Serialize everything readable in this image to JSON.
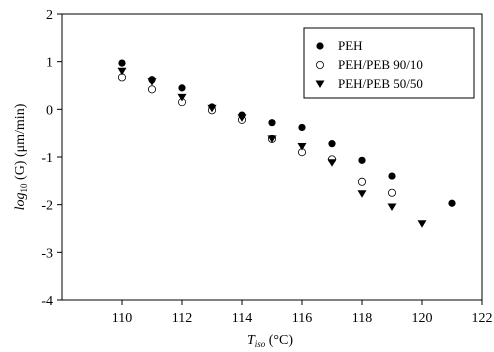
{
  "chart_data": {
    "type": "scatter",
    "title": "",
    "xlabel": {
      "main": "T",
      "sub": "iso",
      "rest": " (°C)"
    },
    "ylabel": {
      "pre": "log",
      "sub": "10",
      "rest": " (G) (μm/min)"
    },
    "xlim": [
      108,
      122
    ],
    "ylim": [
      -4,
      2
    ],
    "xticks": [
      110,
      112,
      114,
      116,
      118,
      120,
      122
    ],
    "yticks": [
      -4,
      -3,
      -2,
      -1,
      0,
      1,
      2
    ],
    "grid": false,
    "legend_position": "top-right",
    "series": [
      {
        "name": "PEH",
        "marker": "filled-circle",
        "points": [
          [
            110,
            0.97
          ],
          [
            111,
            0.62
          ],
          [
            112,
            0.45
          ],
          [
            113,
            0.05
          ],
          [
            114,
            -0.12
          ],
          [
            115,
            -0.28
          ],
          [
            116,
            -0.38
          ],
          [
            117,
            -0.72
          ],
          [
            118,
            -1.07
          ],
          [
            119,
            -1.4
          ],
          [
            121,
            -1.97
          ]
        ]
      },
      {
        "name": "PEH/PEB 90/10",
        "marker": "open-circle",
        "points": [
          [
            110,
            0.67
          ],
          [
            111,
            0.42
          ],
          [
            112,
            0.15
          ],
          [
            113,
            -0.02
          ],
          [
            114,
            -0.22
          ],
          [
            115,
            -0.62
          ],
          [
            116,
            -0.9
          ],
          [
            117,
            -1.05
          ],
          [
            118,
            -1.52
          ],
          [
            119,
            -1.75
          ]
        ]
      },
      {
        "name": "PEH/PEB 50/50",
        "marker": "filled-triangle-down",
        "points": [
          [
            110,
            0.8
          ],
          [
            111,
            0.58
          ],
          [
            112,
            0.25
          ],
          [
            113,
            0.02
          ],
          [
            114,
            -0.18
          ],
          [
            115,
            -0.62
          ],
          [
            116,
            -0.78
          ],
          [
            117,
            -1.12
          ],
          [
            118,
            -1.77
          ],
          [
            119,
            -2.05
          ],
          [
            120,
            -2.4
          ]
        ]
      }
    ]
  }
}
